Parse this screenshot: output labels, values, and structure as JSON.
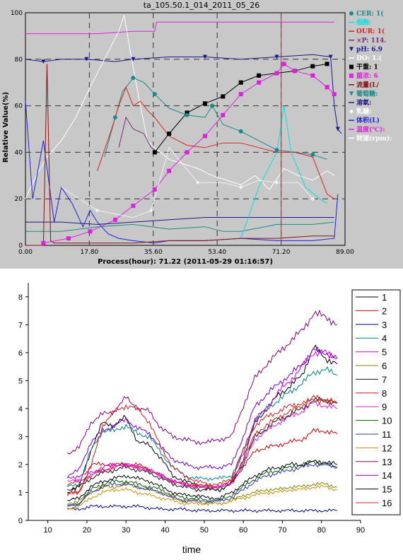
{
  "chart_data": [
    {
      "type": "line",
      "title": "ta_105.50.1_014_2011_05_26",
      "xlabel": "Process(hour): 71.22 (2011-05-29 01:16:57)",
      "ylabel": "Relative Value(%)",
      "xlim": [
        0,
        89
      ],
      "ylim": [
        0,
        100
      ],
      "x_ticks": [
        "0.00",
        "17.80",
        "35.60",
        "53.40",
        "71.20",
        "89.00"
      ],
      "y_ticks": [
        "0",
        "20",
        "40",
        "60",
        "80",
        "100"
      ],
      "grid": "dashed",
      "legend_position": "right",
      "cursor_x": 71.22,
      "legend": [
        {
          "label": "CER: 1(",
          "color": "#1a8a8a",
          "marker": "circle"
        },
        {
          "label": "细胞: ",
          "color": "#00e0e0",
          "marker": "none"
        },
        {
          "label": "OUR: 1(",
          "color": "#e02020",
          "marker": "none"
        },
        {
          "label": "×P: 114.",
          "color": "#7a2a7a",
          "marker": "none"
        },
        {
          "label": "pH: 6.9",
          "color": "#1a1a8a",
          "marker": "triangle"
        },
        {
          "label": "DO: 1.(",
          "color": "#ffffff",
          "marker": "none"
        },
        {
          "label": "干重: 1",
          "color": "#000000",
          "marker": "square"
        },
        {
          "label": "菌浓: 6",
          "color": "#e020e0",
          "marker": "square"
        },
        {
          "label": "流量(L/",
          "color": "#8a1010",
          "marker": "none"
        },
        {
          "label": "葡萄糖: ",
          "color": "#1a8a8a",
          "marker": "triangle"
        },
        {
          "label": "溶氧: ",
          "color": "#1a1a8a",
          "marker": "none"
        },
        {
          "label": "乳糖: ",
          "color": "#ffffff",
          "marker": "diamond"
        },
        {
          "label": "体积(L)",
          "color": "#2020e0",
          "marker": "none"
        },
        {
          "label": "温度(℃): ",
          "color": "#e020e0",
          "marker": "none"
        },
        {
          "label": "转速(rpm): ",
          "color": "#ffffff",
          "marker": "none"
        }
      ],
      "series": [
        {
          "color": "#e020e0",
          "x": [
            0,
            10,
            20,
            30,
            36,
            36.5,
            50,
            60,
            70,
            75,
            80,
            84,
            86
          ],
          "y": [
            91,
            91,
            91,
            92,
            92,
            96,
            96,
            96,
            96,
            96,
            96,
            96,
            96
          ]
        },
        {
          "color": "#1a1a8a",
          "x": [
            0,
            5,
            10,
            17,
            25,
            30,
            40,
            50,
            60,
            70,
            80,
            85,
            86,
            87,
            88
          ],
          "y": [
            80,
            79,
            80,
            80,
            79,
            80,
            81,
            81,
            80,
            81,
            82,
            81,
            60,
            50,
            48
          ]
        },
        {
          "color": "#ffffff",
          "x": [
            0,
            3,
            6,
            10,
            14,
            18,
            22,
            26,
            27.5,
            29,
            32,
            34,
            36,
            40,
            44,
            48,
            52,
            56,
            60,
            64,
            68,
            72,
            76,
            80,
            84,
            86
          ],
          "y": [
            20,
            30,
            38,
            45,
            55,
            68,
            80,
            92,
            99,
            85,
            60,
            45,
            42,
            37,
            35,
            33,
            30,
            28,
            26,
            30,
            24,
            33,
            30,
            28,
            32,
            30
          ]
        },
        {
          "color": "#000000",
          "x": [
            36,
            40,
            45,
            50,
            55,
            60,
            65,
            70,
            75,
            80,
            84
          ],
          "y": [
            40,
            48,
            57,
            61,
            64,
            70,
            73,
            74,
            75,
            77,
            78
          ]
        },
        {
          "color": "#e020e0",
          "x": [
            5,
            12,
            18,
            25,
            30,
            36,
            40,
            45,
            50,
            55,
            60,
            65,
            70,
            72,
            75,
            80,
            84,
            86
          ],
          "y": [
            1,
            3,
            6,
            11,
            17,
            24,
            32,
            40,
            47,
            56,
            65,
            70,
            74,
            78,
            75,
            73,
            68,
            65
          ]
        },
        {
          "color": "#1a8a8a",
          "x": [
            22,
            25,
            27,
            30,
            33,
            36,
            40,
            45,
            50,
            52,
            55,
            60,
            65,
            70,
            75,
            80,
            84
          ],
          "y": [
            38,
            55,
            66,
            72,
            70,
            65,
            59,
            56,
            55,
            60,
            52,
            49,
            45,
            41,
            40,
            39,
            37
          ]
        },
        {
          "color": "#e02020",
          "x": [
            20,
            24,
            26,
            28,
            30,
            32,
            34,
            36,
            40,
            45,
            50,
            55,
            60,
            65,
            70,
            75,
            80,
            84,
            86
          ],
          "y": [
            32,
            50,
            60,
            68,
            60,
            62,
            58,
            55,
            47,
            43,
            42,
            44,
            44,
            42,
            40,
            40,
            38,
            22,
            20
          ]
        },
        {
          "color": "#7a2a7a",
          "x": [
            26,
            28,
            30,
            33,
            35,
            37
          ],
          "y": [
            42,
            55,
            50,
            48,
            42,
            40
          ]
        },
        {
          "color": "#2020e0",
          "x": [
            0,
            2,
            5,
            8,
            10,
            13,
            16,
            18,
            20,
            23,
            26,
            30,
            36,
            40,
            50,
            60,
            70,
            80,
            86,
            87
          ],
          "y": [
            62,
            20,
            45,
            10,
            25,
            18,
            8,
            15,
            10,
            5,
            3,
            2,
            1,
            2,
            2,
            3,
            2,
            2,
            3,
            22
          ]
        },
        {
          "color": "#1a8a8a",
          "x": [
            0,
            10,
            20,
            30,
            40,
            50,
            55,
            60,
            70,
            80,
            86
          ],
          "y": [
            6,
            6,
            8,
            9,
            7,
            8,
            6,
            6,
            9,
            9,
            10
          ]
        },
        {
          "color": "#1a1a8a",
          "x": [
            0,
            10,
            20,
            30,
            40,
            50,
            60,
            70,
            80,
            86
          ],
          "y": [
            10,
            10,
            9,
            10,
            11,
            12,
            12,
            12,
            12,
            12
          ]
        },
        {
          "color": "#00e0e0",
          "x": [
            60,
            65,
            70,
            72,
            74,
            78,
            82,
            84
          ],
          "y": [
            3,
            25,
            40,
            60,
            40,
            25,
            20,
            18
          ]
        },
        {
          "color": "#8a1010",
          "x": [
            0,
            5,
            6,
            7,
            8,
            10,
            20,
            30,
            40,
            50,
            60,
            70,
            80,
            86
          ],
          "y": [
            0,
            0,
            78,
            2,
            1,
            1,
            1,
            1,
            2,
            2,
            3,
            3,
            4,
            4
          ]
        },
        {
          "color": "#f0f0f0",
          "x": [
            10,
            20,
            30,
            35,
            40,
            48,
            55,
            60,
            65,
            70,
            76,
            80
          ],
          "y": [
            25,
            15,
            12,
            15,
            42,
            27,
            27,
            25,
            28,
            27,
            27,
            20
          ]
        }
      ]
    },
    {
      "type": "line",
      "title": "",
      "xlabel": "time",
      "ylabel": "",
      "xlim": [
        5,
        90
      ],
      "ylim": [
        0,
        8.5
      ],
      "x_ticks": [
        10,
        20,
        30,
        40,
        50,
        60,
        70,
        80,
        90
      ],
      "y_ticks": [
        0,
        1,
        2,
        3,
        4,
        5,
        6,
        7,
        8
      ],
      "grid": false,
      "legend_position": "right",
      "x": [
        15,
        18,
        21,
        24,
        27,
        30,
        33,
        36,
        39,
        42,
        45,
        48,
        51,
        54,
        57,
        60,
        63,
        66,
        69,
        72,
        75,
        78,
        81,
        84
      ],
      "series": [
        {
          "name": "1",
          "color": "#000000",
          "values": [
            1.0,
            1.2,
            2.5,
            3.5,
            3.4,
            3.7,
            2.8,
            2.7,
            2.2,
            1.6,
            1.4,
            1.3,
            1.1,
            1.1,
            1.3,
            2.2,
            3.5,
            4.0,
            4.5,
            4.8,
            5.2,
            6.2,
            5.8,
            5.6
          ]
        },
        {
          "name": "2",
          "color": "#d00000",
          "values": [
            1.0,
            1.0,
            2.0,
            2.0,
            2.0,
            2.0,
            2.0,
            1.8,
            1.6,
            1.4,
            1.3,
            1.3,
            1.2,
            1.2,
            1.4,
            1.9,
            2.5,
            2.6,
            2.7,
            2.8,
            2.9,
            3.2,
            3.2,
            3.1
          ]
        },
        {
          "name": "3",
          "color": "#000090",
          "values": [
            0.4,
            0.4,
            0.5,
            0.5,
            0.5,
            0.5,
            0.5,
            0.45,
            0.4,
            0.4,
            0.4,
            0.35,
            0.35,
            0.35,
            0.35,
            0.35,
            0.35,
            0.35,
            0.35,
            0.35,
            0.35,
            0.35,
            0.35,
            0.35
          ]
        },
        {
          "name": "4",
          "color": "#008080",
          "values": [
            1.2,
            1.3,
            2.5,
            3.2,
            3.2,
            3.4,
            3.1,
            3.0,
            2.4,
            1.9,
            1.6,
            1.5,
            1.5,
            1.5,
            1.6,
            2.5,
            3.6,
            4.0,
            4.3,
            4.6,
            4.9,
            5.3,
            5.4,
            5.2
          ]
        },
        {
          "name": "5",
          "color": "#e000e0",
          "values": [
            1.5,
            1.6,
            1.7,
            1.9,
            2.0,
            2.0,
            1.9,
            1.8,
            1.6,
            1.4,
            1.3,
            1.2,
            1.2,
            1.2,
            1.4,
            2.4,
            3.6,
            4.0,
            4.6,
            5.0,
            5.5,
            6.0,
            6.0,
            5.8
          ]
        },
        {
          "name": "6",
          "color": "#808000",
          "values": [
            0.6,
            0.7,
            1.0,
            1.2,
            1.2,
            1.3,
            1.2,
            1.1,
            1.0,
            0.8,
            0.7,
            0.7,
            0.6,
            0.6,
            0.7,
            0.9,
            1.0,
            1.1,
            1.1,
            1.2,
            1.2,
            1.3,
            1.3,
            1.2
          ]
        },
        {
          "name": "7",
          "color": "#101010",
          "values": [
            1.1,
            1.2,
            1.5,
            1.7,
            1.8,
            1.9,
            1.8,
            1.7,
            1.5,
            1.3,
            1.2,
            1.1,
            1.1,
            1.1,
            1.3,
            2.0,
            3.0,
            3.3,
            3.6,
            3.8,
            4.0,
            4.3,
            4.3,
            4.2
          ]
        },
        {
          "name": "8",
          "color": "#c02020",
          "values": [
            1.3,
            1.4,
            1.6,
            1.8,
            1.9,
            2.0,
            1.9,
            1.8,
            1.6,
            1.4,
            1.3,
            1.2,
            1.2,
            1.2,
            1.4,
            2.1,
            3.1,
            3.4,
            3.7,
            3.9,
            4.1,
            4.4,
            4.3,
            4.2
          ]
        },
        {
          "name": "9",
          "color": "#e020e0",
          "values": [
            1.4,
            1.4,
            1.6,
            1.8,
            1.9,
            2.0,
            1.9,
            1.8,
            1.6,
            1.4,
            1.3,
            1.2,
            1.2,
            1.2,
            1.3,
            2.0,
            2.9,
            3.2,
            3.5,
            3.7,
            3.9,
            4.2,
            4.1,
            4.0
          ]
        },
        {
          "name": "10",
          "color": "#006000",
          "values": [
            0.5,
            0.6,
            1.1,
            1.3,
            1.4,
            1.4,
            1.3,
            1.2,
            1.1,
            0.9,
            0.8,
            0.8,
            0.7,
            0.7,
            0.9,
            1.2,
            1.5,
            1.7,
            1.8,
            1.9,
            2.0,
            2.1,
            2.0,
            1.9
          ]
        },
        {
          "name": "11",
          "color": "#3030b0",
          "values": [
            0.5,
            0.6,
            1.0,
            1.2,
            1.3,
            1.3,
            1.2,
            1.1,
            1.0,
            0.8,
            0.7,
            0.7,
            0.7,
            0.7,
            0.8,
            1.1,
            1.4,
            1.6,
            1.7,
            1.8,
            1.9,
            2.0,
            2.0,
            1.9
          ]
        },
        {
          "name": "12",
          "color": "#d09000",
          "values": [
            0.4,
            0.5,
            0.8,
            1.0,
            1.1,
            1.1,
            1.0,
            0.9,
            0.8,
            0.7,
            0.6,
            0.6,
            0.6,
            0.6,
            0.7,
            0.8,
            0.9,
            1.0,
            1.0,
            1.1,
            1.1,
            1.2,
            1.2,
            1.1
          ]
        },
        {
          "name": "13",
          "color": "#800080",
          "values": [
            2.4,
            2.6,
            3.5,
            3.8,
            3.9,
            4.4,
            4.0,
            3.9,
            3.3,
            3.0,
            2.9,
            2.8,
            2.8,
            2.9,
            3.0,
            4.1,
            5.1,
            5.6,
            6.0,
            6.4,
            6.8,
            7.4,
            7.3,
            7.0
          ]
        },
        {
          "name": "14",
          "color": "#7000c0",
          "values": [
            1.6,
            1.8,
            2.8,
            3.2,
            3.4,
            3.6,
            3.3,
            3.1,
            2.6,
            2.2,
            2.0,
            1.9,
            1.9,
            1.9,
            2.0,
            3.0,
            4.1,
            4.5,
            4.9,
            5.2,
            5.6,
            6.1,
            6.0,
            5.8
          ]
        },
        {
          "name": "15",
          "color": "#000000",
          "values": [
            0.7,
            0.8,
            1.2,
            1.4,
            1.5,
            1.6,
            1.5,
            1.4,
            1.2,
            1.0,
            0.9,
            0.9,
            0.8,
            0.8,
            1.0,
            1.3,
            1.6,
            1.8,
            1.9,
            2.0,
            2.0,
            2.1,
            2.1,
            2.0
          ]
        },
        {
          "name": "16",
          "color": "#d02020",
          "values": [
            0.9,
            1.0,
            1.9,
            3.4,
            3.9,
            4.1,
            4.0,
            3.5,
            2.6,
            1.9,
            1.6,
            1.4,
            1.3,
            1.3,
            1.5,
            2.5,
            3.4,
            3.7,
            3.9,
            4.1,
            4.2,
            4.3,
            4.3,
            4.2
          ]
        }
      ]
    }
  ]
}
